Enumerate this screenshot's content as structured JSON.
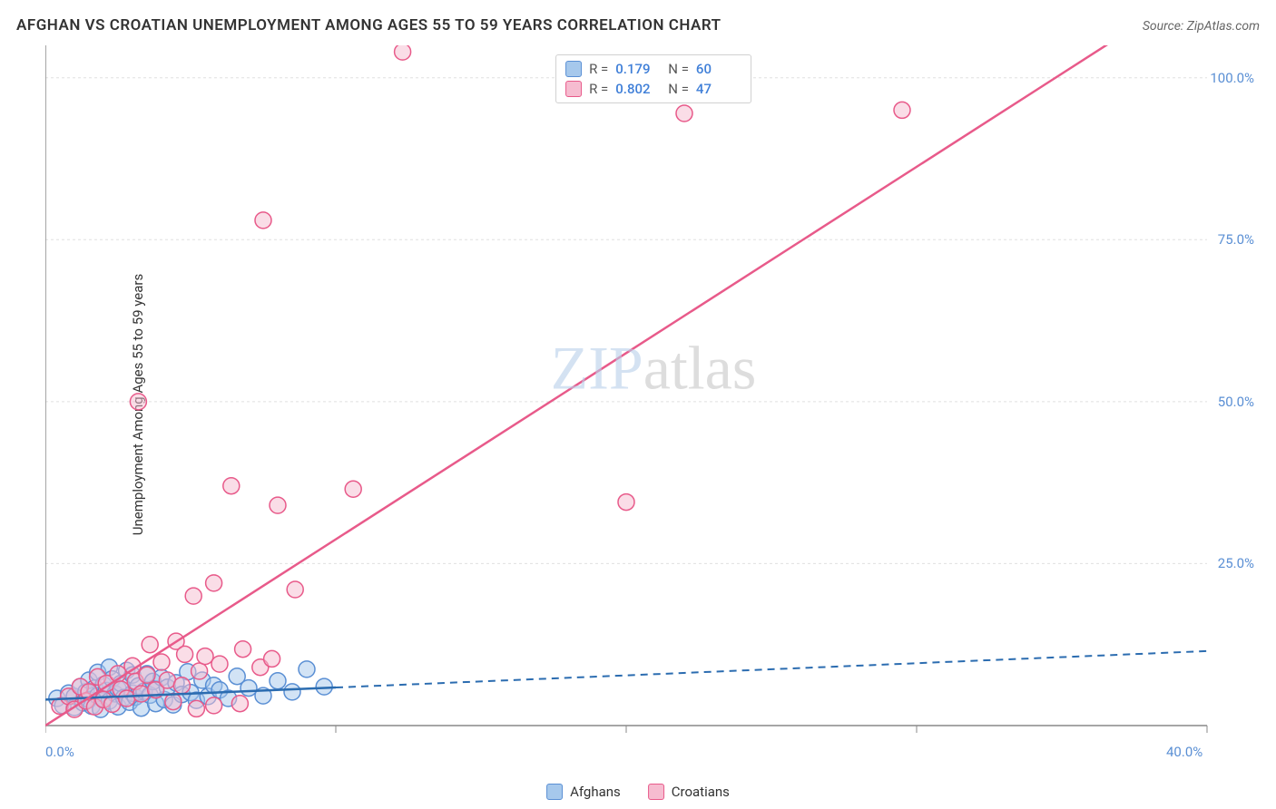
{
  "title": "AFGHAN VS CROATIAN UNEMPLOYMENT AMONG AGES 55 TO 59 YEARS CORRELATION CHART",
  "source": "Source: ZipAtlas.com",
  "y_axis_label": "Unemployment Among Ages 55 to 59 years",
  "watermark_zip": "ZIP",
  "watermark_atlas": "atlas",
  "chart": {
    "type": "scatter",
    "xlim": [
      0,
      40
    ],
    "ylim": [
      0,
      105
    ],
    "x_ticks": [
      0,
      10,
      20,
      30,
      40
    ],
    "x_tick_labels": [
      "0.0%",
      "",
      "",
      "",
      "40.0%"
    ],
    "y_ticks": [
      25,
      50,
      75,
      100
    ],
    "y_tick_labels": [
      "25.0%",
      "50.0%",
      "75.0%",
      "100.0%"
    ],
    "grid_color": "#e0e0e0",
    "axis_color": "#888888",
    "background": "#ffffff",
    "series": [
      {
        "name": "Afghans",
        "color_fill": "#a6c8ec",
        "color_stroke": "#5a8fd4",
        "marker_radius": 9,
        "fill_opacity": 0.5,
        "R": "0.179",
        "N": "60",
        "trend_color": "#2b6cb0",
        "trend_solid_end_x": 10,
        "trend_y_at_0": 4.0,
        "trend_y_at_40": 11.5,
        "points": [
          [
            0.4,
            4.2
          ],
          [
            0.6,
            3.1
          ],
          [
            0.8,
            5.0
          ],
          [
            1.0,
            4.5
          ],
          [
            1.0,
            2.8
          ],
          [
            1.2,
            6.0
          ],
          [
            1.3,
            3.5
          ],
          [
            1.4,
            5.2
          ],
          [
            1.5,
            7.0
          ],
          [
            1.5,
            4.0
          ],
          [
            1.6,
            3.0
          ],
          [
            1.7,
            5.8
          ],
          [
            1.8,
            4.6
          ],
          [
            1.8,
            8.2
          ],
          [
            1.9,
            2.5
          ],
          [
            2.0,
            6.3
          ],
          [
            2.0,
            4.1
          ],
          [
            2.1,
            5.4
          ],
          [
            2.2,
            9.0
          ],
          [
            2.2,
            3.8
          ],
          [
            2.3,
            7.2
          ],
          [
            2.4,
            4.9
          ],
          [
            2.5,
            5.7
          ],
          [
            2.5,
            2.9
          ],
          [
            2.6,
            6.5
          ],
          [
            2.7,
            4.3
          ],
          [
            2.8,
            8.5
          ],
          [
            2.9,
            3.6
          ],
          [
            3.0,
            5.0
          ],
          [
            3.0,
            7.8
          ],
          [
            3.1,
            4.4
          ],
          [
            3.2,
            6.1
          ],
          [
            3.3,
            2.7
          ],
          [
            3.4,
            5.3
          ],
          [
            3.5,
            8.0
          ],
          [
            3.6,
            4.7
          ],
          [
            3.7,
            6.8
          ],
          [
            3.8,
            3.4
          ],
          [
            3.8,
            5.6
          ],
          [
            4.0,
            7.4
          ],
          [
            4.1,
            4.0
          ],
          [
            4.2,
            5.9
          ],
          [
            4.4,
            3.2
          ],
          [
            4.5,
            6.6
          ],
          [
            4.7,
            4.8
          ],
          [
            4.9,
            8.3
          ],
          [
            5.0,
            5.1
          ],
          [
            5.2,
            3.9
          ],
          [
            5.4,
            7.0
          ],
          [
            5.6,
            4.5
          ],
          [
            5.8,
            6.2
          ],
          [
            6.0,
            5.5
          ],
          [
            6.3,
            4.2
          ],
          [
            6.6,
            7.6
          ],
          [
            7.0,
            5.8
          ],
          [
            7.5,
            4.6
          ],
          [
            8.0,
            6.9
          ],
          [
            8.5,
            5.2
          ],
          [
            9.0,
            8.7
          ],
          [
            9.6,
            6.0
          ]
        ]
      },
      {
        "name": "Croatians",
        "color_fill": "#f6bcd0",
        "color_stroke": "#e85a8a",
        "marker_radius": 9,
        "fill_opacity": 0.5,
        "R": "0.802",
        "N": "47",
        "trend_color": "#e85a8a",
        "trend_solid_end_x": 40,
        "trend_y_at_0": 0,
        "trend_y_at_40": 115,
        "points": [
          [
            0.5,
            3.0
          ],
          [
            0.8,
            4.5
          ],
          [
            1.0,
            2.5
          ],
          [
            1.2,
            6.0
          ],
          [
            1.4,
            3.8
          ],
          [
            1.5,
            5.2
          ],
          [
            1.7,
            2.9
          ],
          [
            1.8,
            7.5
          ],
          [
            2.0,
            4.0
          ],
          [
            2.1,
            6.5
          ],
          [
            2.3,
            3.3
          ],
          [
            2.5,
            8.0
          ],
          [
            2.6,
            5.6
          ],
          [
            2.8,
            4.2
          ],
          [
            3.0,
            9.2
          ],
          [
            3.1,
            6.8
          ],
          [
            3.3,
            4.9
          ],
          [
            3.5,
            7.8
          ],
          [
            3.6,
            12.5
          ],
          [
            3.8,
            5.5
          ],
          [
            4.0,
            9.8
          ],
          [
            4.2,
            7.0
          ],
          [
            4.5,
            13.0
          ],
          [
            4.7,
            6.2
          ],
          [
            4.8,
            11.0
          ],
          [
            5.1,
            20.0
          ],
          [
            5.3,
            8.4
          ],
          [
            5.5,
            10.7
          ],
          [
            5.8,
            22.0
          ],
          [
            5.2,
            2.6
          ],
          [
            6.0,
            9.5
          ],
          [
            6.4,
            37.0
          ],
          [
            6.8,
            11.8
          ],
          [
            7.4,
            9.0
          ],
          [
            7.8,
            10.3
          ],
          [
            8.0,
            34.0
          ],
          [
            8.6,
            21.0
          ],
          [
            7.5,
            78.0
          ],
          [
            10.6,
            36.5
          ],
          [
            12.3,
            104.0
          ],
          [
            3.2,
            50.0
          ],
          [
            20.0,
            34.5
          ],
          [
            22.0,
            94.5
          ],
          [
            29.5,
            95.0
          ],
          [
            4.4,
            3.7
          ],
          [
            5.8,
            3.1
          ],
          [
            6.7,
            3.4
          ]
        ]
      }
    ]
  },
  "stats_box": {
    "R_label": "R =",
    "N_label": "N ="
  },
  "legend": {
    "series1": "Afghans",
    "series2": "Croatians"
  }
}
